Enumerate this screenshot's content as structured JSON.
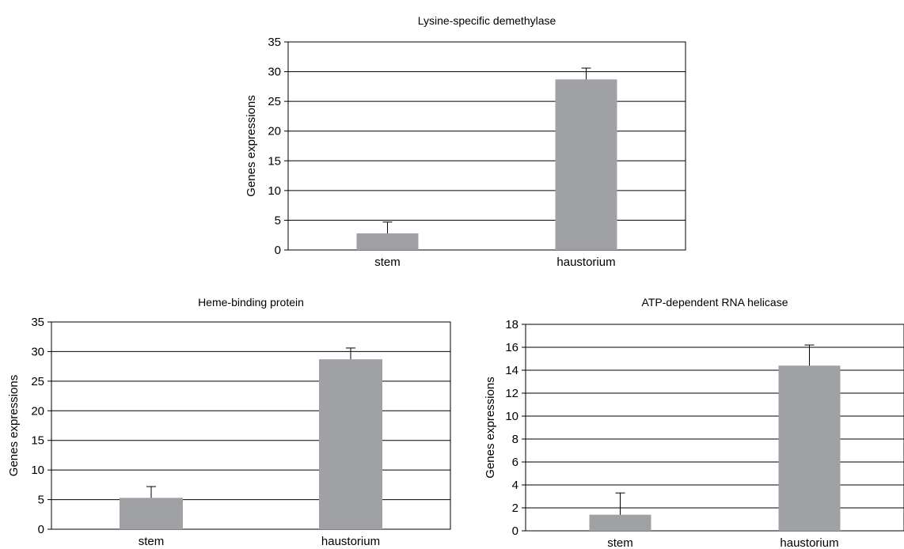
{
  "colors": {
    "bar": "#A0A1A4",
    "axis": "#000000",
    "grid": "#000000",
    "background": "#ffffff"
  },
  "chart_data": [
    {
      "type": "bar",
      "title": "Lysine-specific demethylase",
      "ylabel": "Genes expressions",
      "xlabel": "",
      "categories": [
        "stem",
        "haustorium"
      ],
      "values": [
        2.8,
        28.7
      ],
      "errors": [
        1.9,
        1.9
      ],
      "ylim": [
        0,
        35
      ],
      "yticks": [
        0,
        5,
        10,
        15,
        20,
        25,
        30,
        35
      ],
      "ytick_labels": [
        "0",
        "5",
        "10",
        "15",
        "20",
        "25",
        "30",
        "35"
      ],
      "grid": true
    },
    {
      "type": "bar",
      "title": "Heme-binding protein",
      "ylabel": "Genes expressions",
      "xlabel": "",
      "categories": [
        "stem",
        "haustorium"
      ],
      "values": [
        5.3,
        28.7
      ],
      "errors": [
        1.9,
        1.9
      ],
      "ylim": [
        0,
        35
      ],
      "yticks": [
        0,
        5,
        10,
        15,
        20,
        25,
        30,
        35
      ],
      "ytick_labels": [
        "0",
        "5",
        "10",
        "15",
        "20",
        "25",
        "30",
        "35"
      ],
      "grid": true
    },
    {
      "type": "bar",
      "title": "ATP-dependent RNA helicase",
      "ylabel": "Genes expressions",
      "xlabel": "",
      "categories": [
        "stem",
        "haustorium"
      ],
      "values": [
        1.4,
        14.4
      ],
      "errors": [
        1.9,
        1.8
      ],
      "ylim": [
        0,
        18
      ],
      "yticks": [
        0,
        2,
        4,
        6,
        8,
        10,
        12,
        14,
        16,
        18
      ],
      "ytick_labels": [
        "0",
        "2",
        "4",
        "6",
        "8",
        "10",
        "12",
        "14",
        "16",
        "18"
      ],
      "grid": true
    }
  ]
}
